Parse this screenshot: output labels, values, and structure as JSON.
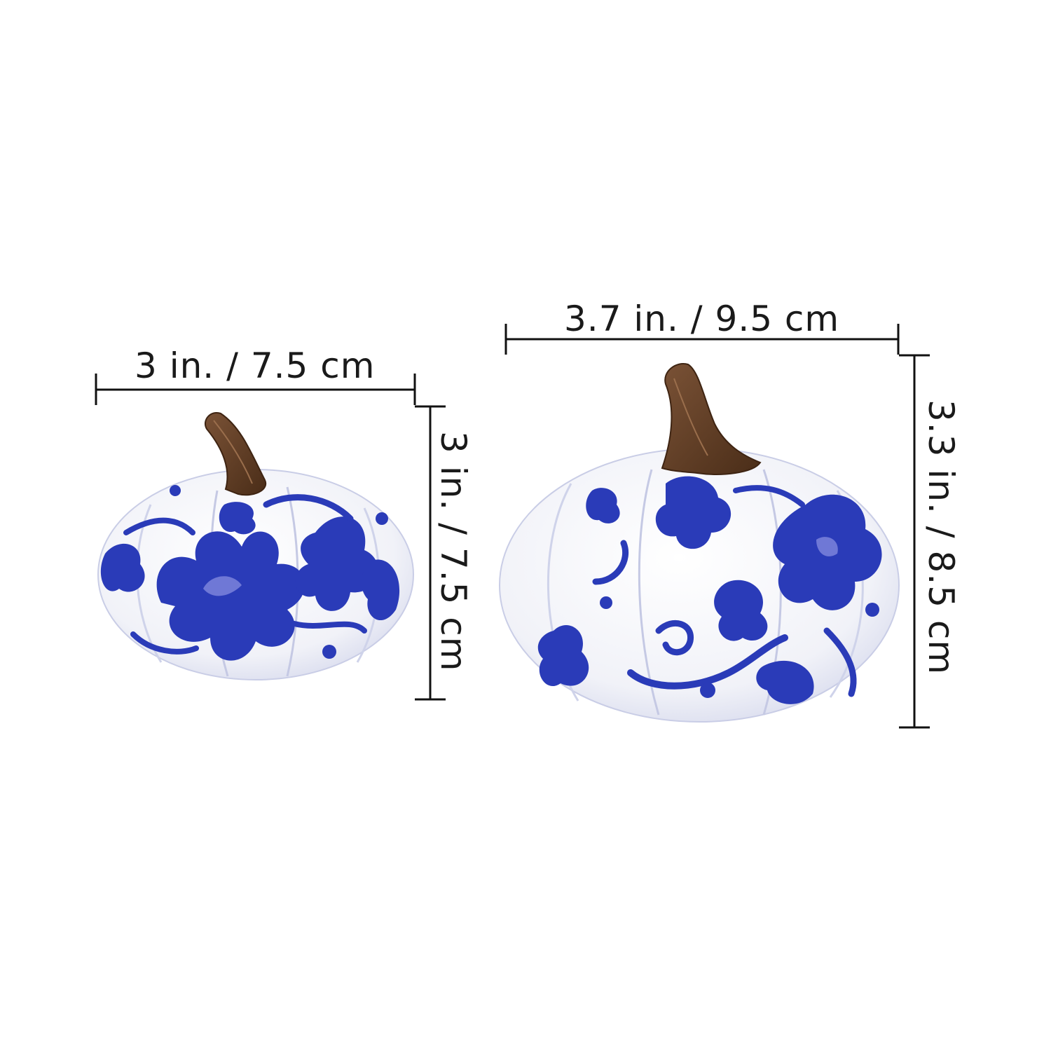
{
  "product": {
    "pattern_colors": {
      "background": "#ffffff",
      "porcelain_blue": "#2a3bb8",
      "light_blue": "#6f78d6",
      "stem_brown": "#5b3a22"
    },
    "small_pumpkin": {
      "icon": "pumpkin-icon",
      "width_label": "3 in. / 7.5 cm",
      "height_label": "3 in. / 7.5 cm"
    },
    "large_pumpkin": {
      "icon": "pumpkin-icon",
      "width_label": "3.7 in. / 9.5 cm",
      "height_label": "3.3 in. / 8.5 cm"
    }
  }
}
